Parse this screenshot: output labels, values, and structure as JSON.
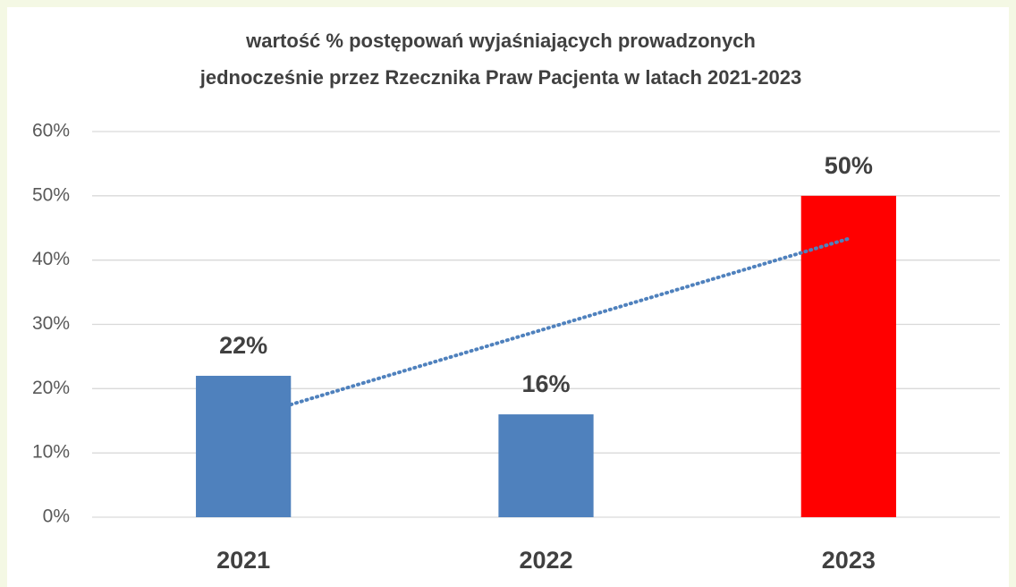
{
  "chart_data": {
    "type": "bar",
    "title_lines": [
      "wartość  %  postępowań wyjaśniających  prowadzonych",
      "jednocześnie  przez Rzecznika  Praw Pacjenta  w latach  2021-2023"
    ],
    "categories": [
      "2021",
      "2022",
      "2023"
    ],
    "values": [
      22,
      16,
      50
    ],
    "value_labels": [
      "22%",
      "16%",
      "50%"
    ],
    "colors": [
      "#4f81bd",
      "#4f81bd",
      "#ff0000"
    ],
    "ylim": [
      0,
      60
    ],
    "yticks": [
      {
        "value": 0,
        "label": "0%"
      },
      {
        "value": 10,
        "label": "10%"
      },
      {
        "value": 20,
        "label": "20%"
      },
      {
        "value": 30,
        "label": "30%"
      },
      {
        "value": 40,
        "label": "40%"
      },
      {
        "value": 50,
        "label": "50%"
      },
      {
        "value": 60,
        "label": "60%"
      }
    ],
    "grid": true,
    "trendline": {
      "type": "linear",
      "color": "#4f81bd",
      "style": "dotted"
    }
  }
}
